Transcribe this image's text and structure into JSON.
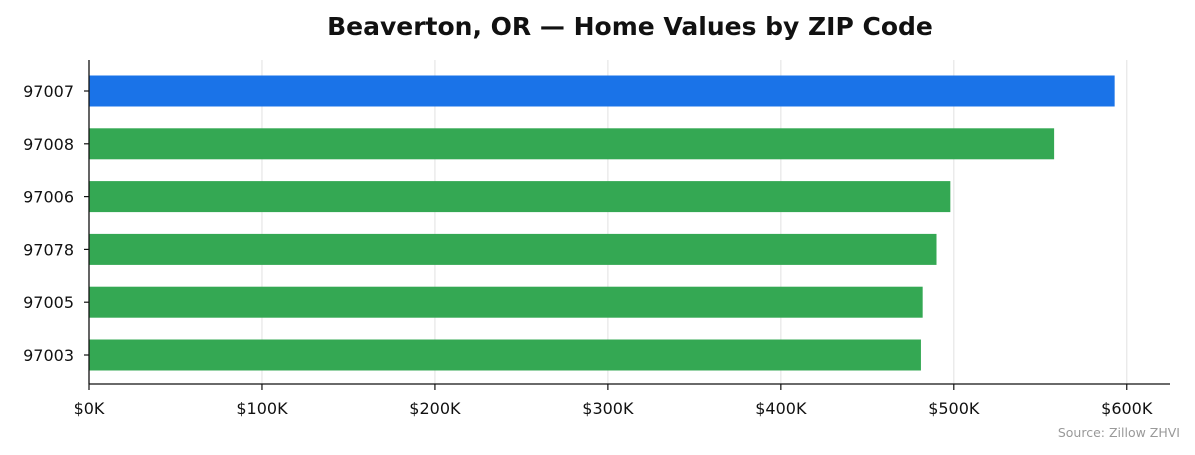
{
  "chart_data": {
    "type": "bar",
    "orientation": "horizontal",
    "title": "Beaverton, OR — Home Values by ZIP Code",
    "categories": [
      "97007",
      "97008",
      "97006",
      "97078",
      "97005",
      "97003"
    ],
    "values": [
      593000,
      558000,
      498000,
      490000,
      482000,
      481000
    ],
    "highlight_index": 0,
    "xlim": [
      0,
      625000
    ],
    "xticks": [
      0,
      100000,
      200000,
      300000,
      400000,
      500000,
      600000
    ],
    "xtick_labels": [
      "$0K",
      "$100K",
      "$200K",
      "$300K",
      "$400K",
      "$500K",
      "$600K"
    ],
    "xlabel": "",
    "ylabel": "",
    "grid": "vertical",
    "colors": {
      "highlight": "#1a73e8",
      "default": "#34a853"
    },
    "source": "Source: Zillow ZHVI"
  }
}
